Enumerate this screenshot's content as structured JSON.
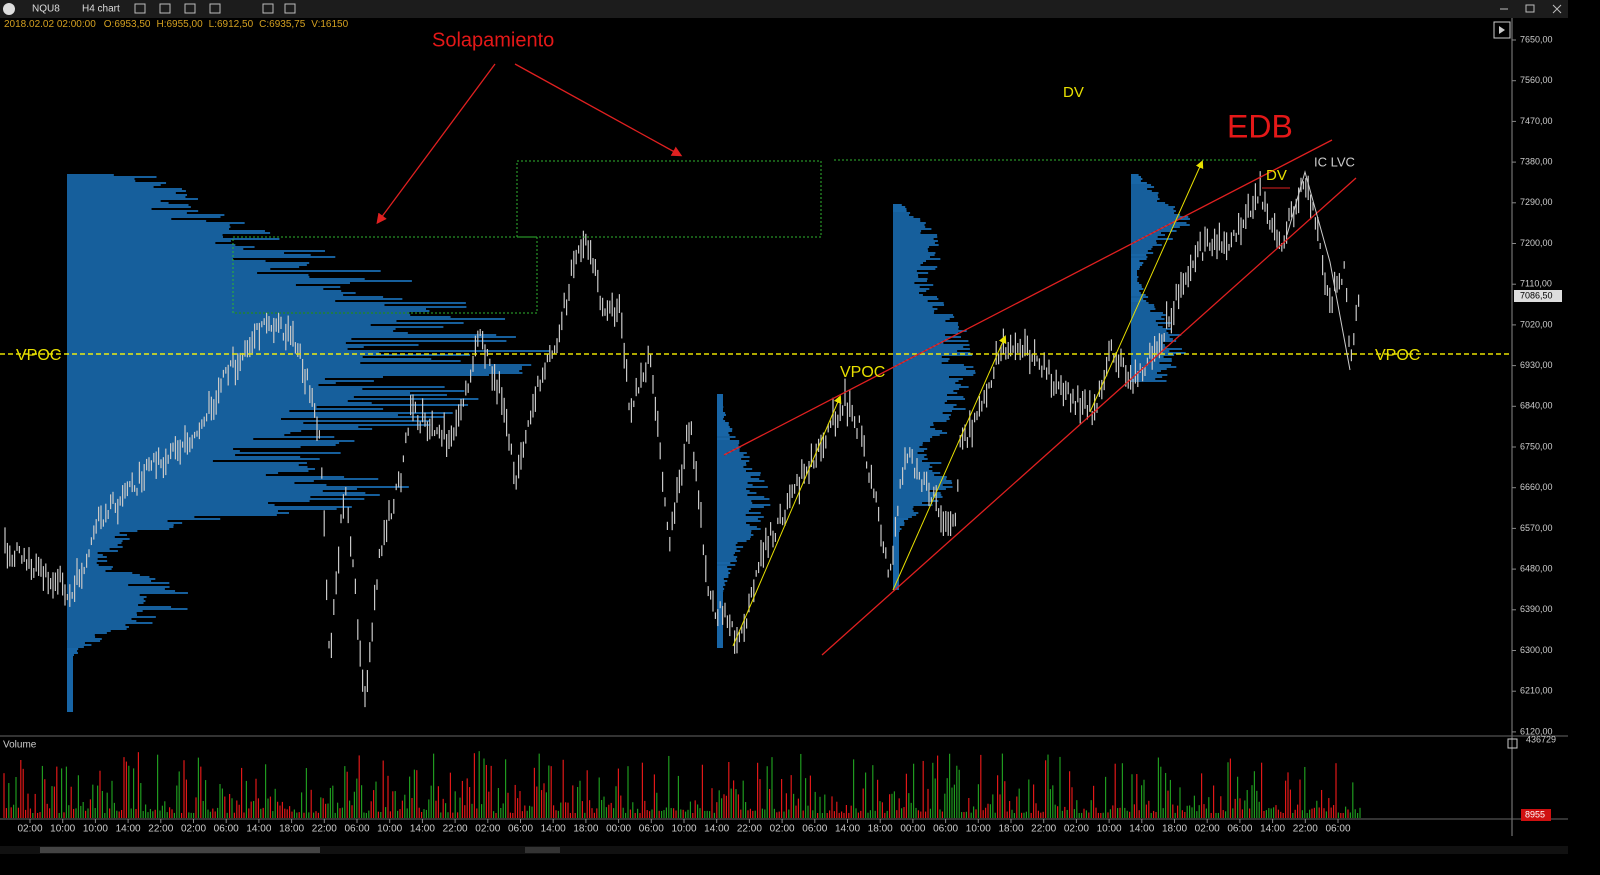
{
  "toolbar": {
    "symbol": "NQU8",
    "chart": "H4 chart"
  },
  "info": {
    "date": "2018.02.02 02:00:00",
    "open": "O:6953,50",
    "high": "H:6955,00",
    "low": "L:6912,50",
    "close": "C:6935,75",
    "volume": "V:16150"
  },
  "price_axis": {
    "labels": [
      "7650,00",
      "7560,00",
      "7470,00",
      "7380,00",
      "7290,00",
      "7200,00",
      "7110,00",
      "7020,00",
      "6930,00",
      "6840,00",
      "6750,00",
      "6660,00",
      "6570,00",
      "6480,00",
      "6390,00",
      "6300,00",
      "6210,00",
      "6120,00"
    ],
    "current": "7086,50"
  },
  "time_axis": [
    "02:00",
    "10:00",
    "10:00",
    "14:00",
    "22:00",
    "02:00",
    "06:00",
    "14:00",
    "18:00",
    "22:00",
    "06:00",
    "10:00",
    "14:00",
    "22:00",
    "02:00",
    "06:00",
    "14:00",
    "18:00",
    "00:00",
    "06:00",
    "10:00",
    "14:00",
    "22:00",
    "02:00",
    "06:00",
    "14:00",
    "18:00",
    "00:00",
    "06:00",
    "10:00",
    "18:00",
    "22:00",
    "02:00",
    "10:00",
    "14:00",
    "18:00",
    "02:00",
    "06:00",
    "14:00",
    "22:00",
    "06:00"
  ],
  "annotations": {
    "overlap": "Solapamiento",
    "dv_top": "DV",
    "edb": "EDB",
    "dv_right": "DV",
    "ic_lvc": "IC  LVC",
    "vpoc_left": "VPOC",
    "vpoc_mid": "VPOC",
    "vpoc_right": "VPOC"
  },
  "volume_panel": {
    "title": "Volume",
    "max": "436729",
    "current": "8955"
  }
}
